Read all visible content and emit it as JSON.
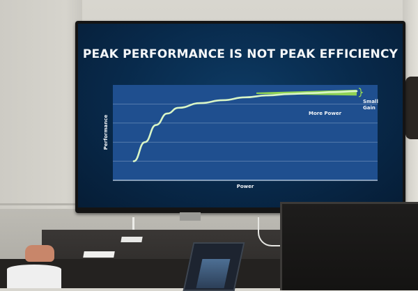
{
  "slide": {
    "title": "PEAK PERFORMANCE IS NOT PEAK EFFICIENCY"
  },
  "chart_data": {
    "type": "line",
    "title": "PEAK PERFORMANCE IS NOT PEAK EFFICIENCY",
    "xlabel": "Power",
    "ylabel": "Performance",
    "grid": true,
    "annotations": [
      {
        "text": "More Power"
      },
      {
        "text": "Small"
      },
      {
        "text": "Gain"
      }
    ],
    "series": [
      {
        "x": [
          0.0,
          0.05,
          0.1,
          0.15,
          0.2,
          0.3,
          0.4,
          0.5,
          0.6,
          0.7,
          0.8,
          0.9,
          1.0
        ],
        "y": [
          0.2,
          0.4,
          0.58,
          0.7,
          0.76,
          0.81,
          0.84,
          0.87,
          0.89,
          0.905,
          0.915,
          0.925,
          0.935
        ]
      }
    ],
    "colors": {
      "line": "#d9f5c6",
      "gain_bracket": "#9be04e",
      "plot_bg": "#1f4f8f",
      "grid": "#b9cde6",
      "text": "#f2f5f8"
    }
  }
}
